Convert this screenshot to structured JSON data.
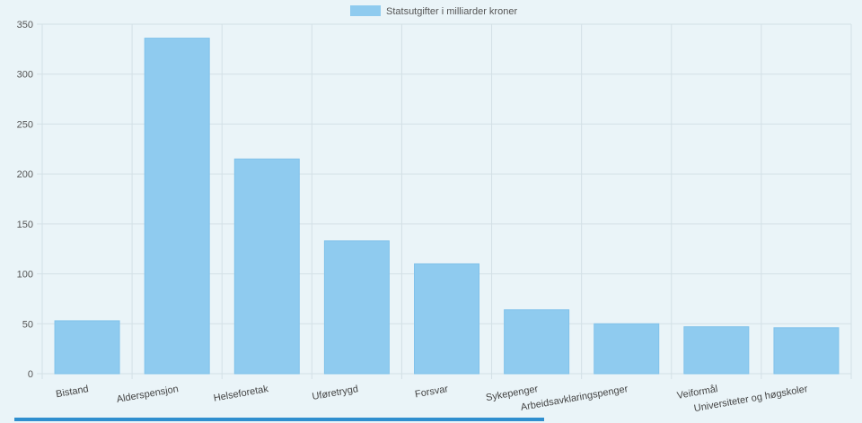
{
  "chart_data": {
    "type": "bar",
    "title": "",
    "xlabel": "",
    "ylabel": "",
    "legend": {
      "position": "top-center",
      "entries": [
        "Statsutgifter i milliarder kroner"
      ]
    },
    "categories": [
      "Bistand",
      "Alderspensjon",
      "Helseforetak",
      "Uføretrygd",
      "Forsvar",
      "Sykepenger",
      "Arbeidsavklaringspenger",
      "Veiformål",
      "Universiteter og høgskoler"
    ],
    "series": [
      {
        "name": "Statsutgifter i milliarder kroner",
        "values": [
          53,
          336,
          215,
          133,
          110,
          64,
          50,
          47,
          46
        ]
      }
    ],
    "ylim": [
      0,
      350
    ],
    "yticks": [
      0,
      50,
      100,
      150,
      200,
      250,
      300,
      350
    ],
    "grid": true,
    "colors": {
      "bar": "#8fcbef",
      "bar_edge": "#80c2ea",
      "grid": "#d3e0e6",
      "axis_text": "#555555",
      "label_text": "#444444"
    }
  }
}
